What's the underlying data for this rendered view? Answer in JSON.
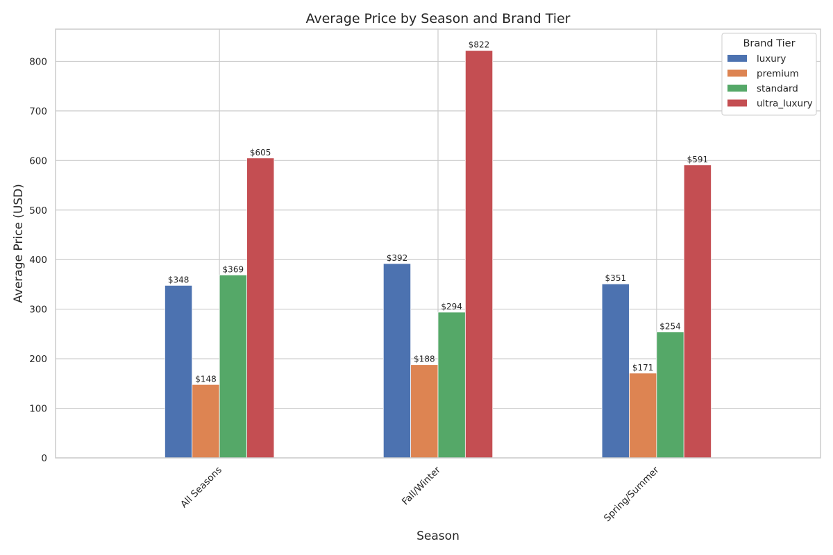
{
  "chart_data": {
    "type": "bar",
    "title": "Average Price by Season and Brand Tier",
    "xlabel": "Season",
    "ylabel": "Average Price (USD)",
    "categories": [
      "All Seasons",
      "Fall/Winter",
      "Spring/Summer"
    ],
    "series": [
      {
        "name": "luxury",
        "color": "#4c72b0",
        "values": [
          348,
          392,
          351
        ],
        "labels": [
          "$348",
          "$392",
          "$351"
        ]
      },
      {
        "name": "premium",
        "color": "#dd8452",
        "values": [
          148,
          188,
          171
        ],
        "labels": [
          "$148",
          "$188",
          "$171"
        ]
      },
      {
        "name": "standard",
        "color": "#55a868",
        "values": [
          369,
          294,
          254
        ],
        "labels": [
          "$369",
          "$294",
          "$254"
        ]
      },
      {
        "name": "ultra_luxury",
        "color": "#c44e52",
        "values": [
          605,
          822,
          591
        ],
        "labels": [
          "$605",
          "$822",
          "$591"
        ]
      }
    ],
    "ylim": [
      0,
      865
    ],
    "yticks": [
      0,
      100,
      200,
      300,
      400,
      500,
      600,
      700,
      800
    ],
    "grid": true,
    "legend": {
      "title": "Brand Tier",
      "placement": "top-right"
    }
  }
}
